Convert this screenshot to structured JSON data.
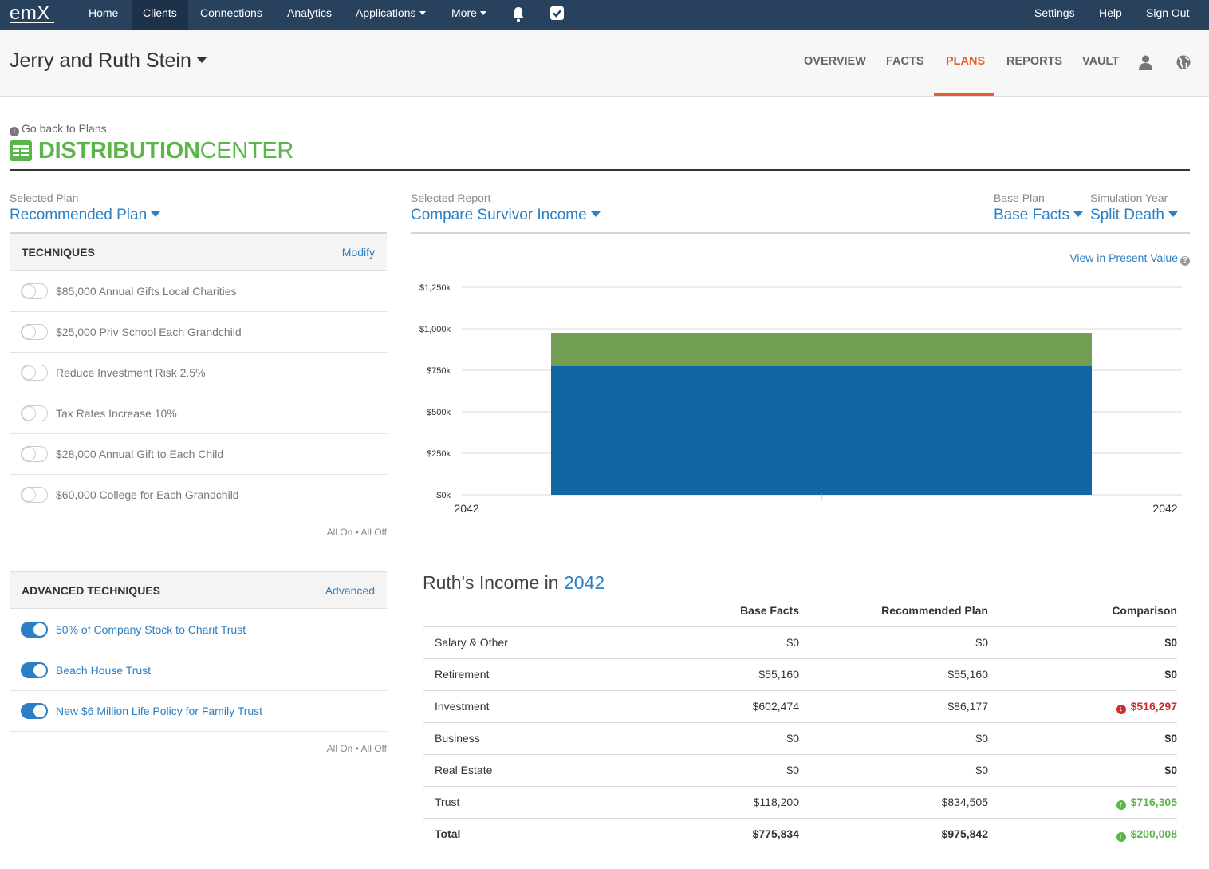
{
  "topnav": {
    "logo": "emX",
    "items": [
      "Home",
      "Clients",
      "Connections",
      "Analytics",
      "Applications",
      "More"
    ],
    "right_items": [
      "Settings",
      "Help",
      "Sign Out"
    ],
    "icons": [
      "bell-icon",
      "checkbox-icon"
    ]
  },
  "client": {
    "name": "Jerry and Ruth Stein",
    "tabs": [
      "OVERVIEW",
      "FACTS",
      "PLANS",
      "REPORTS",
      "VAULT"
    ],
    "active_tab": "PLANS",
    "tab_icons": [
      "person-icon",
      "globe-icon"
    ]
  },
  "page": {
    "back_link": "Go back to Plans",
    "title_bold": "DISTRIBUTION",
    "title_rest": "CENTER"
  },
  "selectors": {
    "plan_label": "Selected Plan",
    "plan_value": "Recommended Plan",
    "report_label": "Selected Report",
    "report_value": "Compare Survivor Income",
    "base_label": "Base Plan",
    "base_value": "Base Facts",
    "sim_label": "Simulation Year",
    "sim_value": "Split Death"
  },
  "techniques": {
    "title": "TECHNIQUES",
    "link": "Modify",
    "items": [
      {
        "label": "$85,000 Annual Gifts Local Charities",
        "on": false
      },
      {
        "label": "$25,000 Priv School Each Grandchild",
        "on": false
      },
      {
        "label": "Reduce Investment Risk 2.5%",
        "on": false
      },
      {
        "label": "Tax Rates Increase 10%",
        "on": false
      },
      {
        "label": "$28,000 Annual Gift to Each Child",
        "on": false
      },
      {
        "label": "$60,000 College for Each Grandchild",
        "on": false
      }
    ],
    "all_on_off": "All On • All Off"
  },
  "advanced": {
    "title": "ADVANCED TECHNIQUES",
    "link": "Advanced",
    "items": [
      {
        "label": "50% of Company Stock to Charit Trust",
        "on": true
      },
      {
        "label": "Beach House Trust",
        "on": true
      },
      {
        "label": "New $6 Million Life Policy for Family Trust",
        "on": true
      }
    ],
    "all_on_off": "All On • All Off"
  },
  "present_value_link": "View in Present Value",
  "chart_data": {
    "type": "bar",
    "stacked": true,
    "x_labels": [
      "2042",
      "2042"
    ],
    "categories": [
      "2042"
    ],
    "series": [
      {
        "color": "#1167a3",
        "values": [
          775.8
        ]
      },
      {
        "color": "#729f53",
        "values": [
          200.0
        ]
      }
    ],
    "y_ticks": [
      "$0k",
      "$250k",
      "$500k",
      "$750k",
      "$1,000k",
      "$1,250k"
    ],
    "ylim": [
      0,
      1250
    ],
    "grid": true
  },
  "income": {
    "title_prefix": "Ruth's Income in",
    "year": "2042",
    "columns": [
      "Base Facts",
      "Recommended Plan",
      "Comparison"
    ],
    "rows": [
      {
        "label": "Salary & Other",
        "base": "$0",
        "rec": "$0",
        "cmp": "$0",
        "dir": ""
      },
      {
        "label": "Retirement",
        "base": "$55,160",
        "rec": "$55,160",
        "cmp": "$0",
        "dir": ""
      },
      {
        "label": "Investment",
        "base": "$602,474",
        "rec": "$86,177",
        "cmp": "$516,297",
        "dir": "neg"
      },
      {
        "label": "Business",
        "base": "$0",
        "rec": "$0",
        "cmp": "$0",
        "dir": ""
      },
      {
        "label": "Real Estate",
        "base": "$0",
        "rec": "$0",
        "cmp": "$0",
        "dir": ""
      },
      {
        "label": "Trust",
        "base": "$118,200",
        "rec": "$834,505",
        "cmp": "$716,305",
        "dir": "pos"
      },
      {
        "label": "Total",
        "base": "$775,834",
        "rec": "$975,842",
        "cmp": "$200,008",
        "dir": "pos"
      }
    ]
  }
}
